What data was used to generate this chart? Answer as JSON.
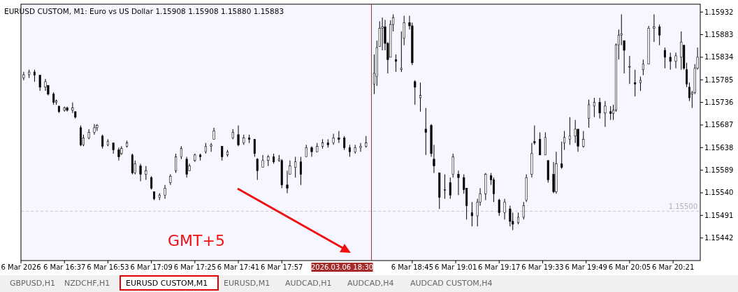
{
  "chart_data": {
    "type": "candlestick",
    "title": "EURUSD CUSTOM, M1:  Euro vs US Dollar  1.15908 1.15908 1.15880 1.15883",
    "x": [
      "2026-03-06T16:22",
      "2026-03-06T16:24",
      "2026-03-06T16:26",
      "2026-03-06T16:28",
      "2026-03-06T16:30",
      "2026-03-06T16:31",
      "2026-03-06T16:33",
      "2026-03-06T16:34",
      "2026-03-06T16:35",
      "2026-03-06T16:37",
      "2026-03-06T16:38",
      "2026-03-06T16:40",
      "2026-03-06T16:41",
      "2026-03-06T16:43",
      "2026-03-06T16:44",
      "2026-03-06T16:46",
      "2026-03-06T16:48",
      "2026-03-06T16:49",
      "2026-03-06T16:51",
      "2026-03-06T16:53",
      "2026-03-06T16:55",
      "2026-03-06T16:57",
      "2026-03-06T16:58",
      "2026-03-06T17:00",
      "2026-03-06T17:02",
      "2026-03-06T17:03",
      "2026-03-06T17:05",
      "2026-03-06T17:07",
      "2026-03-06T17:09",
      "2026-03-06T17:10",
      "2026-03-06T17:12",
      "2026-03-06T17:14",
      "2026-03-06T17:16",
      "2026-03-06T17:18",
      "2026-03-06T17:20",
      "2026-03-06T17:22",
      "2026-03-06T17:23",
      "2026-03-06T17:25",
      "2026-03-06T17:27",
      "2026-03-06T17:29",
      "2026-03-06T17:31",
      "2026-03-06T17:32",
      "2026-03-06T17:35",
      "2026-03-06T17:37",
      "2026-03-06T17:39",
      "2026-03-06T17:41",
      "2026-03-06T17:43",
      "2026-03-06T17:45",
      "2026-03-06T17:47",
      "2026-03-06T17:48",
      "2026-03-06T17:50",
      "2026-03-06T17:52",
      "2026-03-06T17:54",
      "2026-03-06T17:56",
      "2026-03-06T17:57",
      "2026-03-06T17:59",
      "2026-03-06T18:00",
      "2026-03-06T18:02",
      "2026-03-06T18:04",
      "2026-03-06T18:06",
      "2026-03-06T18:08",
      "2026-03-06T18:10",
      "2026-03-06T18:12",
      "2026-03-06T18:14",
      "2026-03-06T18:16",
      "2026-03-06T18:18",
      "2026-03-06T18:20",
      "2026-03-06T18:22",
      "2026-03-06T18:24",
      "2026-03-06T18:26",
      "2026-03-06T18:28",
      "2026-03-06T18:31",
      "2026-03-06T18:32",
      "2026-03-06T18:33",
      "2026-03-06T18:34",
      "2026-03-06T18:35",
      "2026-03-06T18:36",
      "2026-03-06T18:37",
      "2026-03-06T18:38",
      "2026-03-06T18:39",
      "2026-03-06T18:41",
      "2026-03-06T18:42",
      "2026-03-06T18:44",
      "2026-03-06T18:45",
      "2026-03-06T18:46",
      "2026-03-06T18:48",
      "2026-03-06T18:50",
      "2026-03-06T18:52",
      "2026-03-06T18:53",
      "2026-03-06T18:55",
      "2026-03-06T18:57",
      "2026-03-06T18:59",
      "2026-03-06T19:00",
      "2026-03-06T19:02",
      "2026-03-06T19:04",
      "2026-03-06T19:05",
      "2026-03-06T19:07",
      "2026-03-06T19:09",
      "2026-03-06T19:10",
      "2026-03-06T19:12",
      "2026-03-06T19:14",
      "2026-03-06T19:15",
      "2026-03-06T19:17",
      "2026-03-06T19:19",
      "2026-03-06T19:21",
      "2026-03-06T19:22",
      "2026-03-06T19:24",
      "2026-03-06T19:26",
      "2026-03-06T19:27",
      "2026-03-06T19:29",
      "2026-03-06T19:30",
      "2026-03-06T19:32",
      "2026-03-06T19:34",
      "2026-03-06T19:35",
      "2026-03-06T19:37",
      "2026-03-06T19:38",
      "2026-03-06T19:40",
      "2026-03-06T19:41",
      "2026-03-06T19:43",
      "2026-03-06T19:45",
      "2026-03-06T19:46",
      "2026-03-06T19:48",
      "2026-03-06T19:50",
      "2026-03-06T19:52",
      "2026-03-06T19:54",
      "2026-03-06T19:56",
      "2026-03-06T19:58",
      "2026-03-06T19:59",
      "2026-03-06T20:00",
      "2026-03-06T20:01",
      "2026-03-06T20:02",
      "2026-03-06T20:03",
      "2026-03-06T20:05",
      "2026-03-06T20:07",
      "2026-03-06T20:09",
      "2026-03-06T20:10",
      "2026-03-06T20:12",
      "2026-03-06T20:14",
      "2026-03-06T20:16",
      "2026-03-06T20:18",
      "2026-03-06T20:20",
      "2026-03-06T20:22",
      "2026-03-06T20:24",
      "2026-03-06T20:25",
      "2026-03-06T20:26",
      "2026-03-06T20:27",
      "2026-03-06T20:28",
      "2026-03-06T20:29",
      "2026-03-06T20:30"
    ],
    "ohlc": [
      [
        1.15789,
        1.15802,
        1.15784,
        1.15796
      ],
      [
        1.15796,
        1.15807,
        1.15789,
        1.15802
      ],
      [
        1.15802,
        1.15807,
        1.15781,
        1.15795
      ],
      [
        1.15795,
        1.15795,
        1.15761,
        1.15769
      ],
      [
        1.15769,
        1.15787,
        1.15761,
        1.15781
      ],
      [
        1.15773,
        1.15773,
        1.15751,
        1.15754
      ],
      [
        1.15754,
        1.15758,
        1.15731,
        1.15736
      ],
      [
        1.15736,
        1.15742,
        1.15731,
        1.15739
      ],
      [
        1.15728,
        1.15728,
        1.15713,
        1.15716
      ],
      [
        1.15719,
        1.15727,
        1.15716,
        1.15724
      ],
      [
        1.15724,
        1.15727,
        1.15716,
        1.15719
      ],
      [
        1.15719,
        1.15736,
        1.15713,
        1.15724
      ],
      [
        1.15716,
        1.15716,
        1.15701,
        1.15704
      ],
      [
        1.15681,
        1.15686,
        1.15641,
        1.15644
      ],
      [
        1.15644,
        1.15666,
        1.15641,
        1.15659
      ],
      [
        1.15659,
        1.15678,
        1.15656,
        1.15671
      ],
      [
        1.15671,
        1.15689,
        1.15666,
        1.15681
      ],
      [
        1.15681,
        1.15689,
        1.15674,
        1.15686
      ],
      [
        1.15663,
        1.15666,
        1.15636,
        1.15641
      ],
      [
        1.15644,
        1.15656,
        1.15641,
        1.15651
      ],
      [
        1.15648,
        1.15648,
        1.15625,
        1.15633
      ],
      [
        1.15633,
        1.15638,
        1.1561,
        1.15618
      ],
      [
        1.15625,
        1.15641,
        1.15622,
        1.15636
      ],
      [
        1.15641,
        1.15653,
        1.15638,
        1.15648
      ],
      [
        1.15622,
        1.15625,
        1.1558,
        1.15583
      ],
      [
        1.15583,
        1.1561,
        1.1558,
        1.15603
      ],
      [
        1.15598,
        1.15603,
        1.15565,
        1.1558
      ],
      [
        1.1558,
        1.15598,
        1.15568,
        1.15588
      ],
      [
        1.15573,
        1.15576,
        1.15547,
        1.1555
      ],
      [
        1.15542,
        1.15542,
        1.15524,
        1.15527
      ],
      [
        1.1553,
        1.15539,
        1.15524,
        1.15535
      ],
      [
        1.15535,
        1.15557,
        1.15527,
        1.1555
      ],
      [
        1.15562,
        1.1558,
        1.15557,
        1.15576
      ],
      [
        1.15588,
        1.15625,
        1.15583,
        1.15618
      ],
      [
        1.15618,
        1.15641,
        1.15613,
        1.15636
      ],
      [
        1.15613,
        1.15618,
        1.15573,
        1.1558
      ],
      [
        1.15588,
        1.15603,
        1.15588,
        1.15598
      ],
      [
        1.1561,
        1.15625,
        1.15607,
        1.15622
      ],
      [
        1.15622,
        1.15625,
        1.1561,
        1.15618
      ],
      [
        1.15629,
        1.15648,
        1.15625,
        1.15641
      ],
      [
        1.15641,
        1.15648,
        1.15629,
        1.15644
      ],
      [
        1.15656,
        1.15681,
        1.15656,
        1.15674
      ],
      [
        1.15641,
        1.15641,
        1.1561,
        1.15618
      ],
      [
        1.15622,
        1.15633,
        1.15618,
        1.15629
      ],
      [
        1.15659,
        1.15678,
        1.15656,
        1.15671
      ],
      [
        1.15666,
        1.15686,
        1.15641,
        1.15644
      ],
      [
        1.15648,
        1.15666,
        1.15644,
        1.15659
      ],
      [
        1.15659,
        1.15666,
        1.15648,
        1.15656
      ],
      [
        1.15656,
        1.15656,
        1.15618,
        1.15625
      ],
      [
        1.15613,
        1.15615,
        1.15568,
        1.15588
      ],
      [
        1.15595,
        1.15622,
        1.15595,
        1.1561
      ],
      [
        1.1561,
        1.15622,
        1.15598,
        1.15618
      ],
      [
        1.15618,
        1.15625,
        1.15603,
        1.15607
      ],
      [
        1.1561,
        1.15622,
        1.15607,
        1.15613
      ],
      [
        1.1561,
        1.15613,
        1.1555,
        1.15557
      ],
      [
        1.15557,
        1.15588,
        1.15539,
        1.1555
      ],
      [
        1.1558,
        1.1561,
        1.1558,
        1.15598
      ],
      [
        1.15595,
        1.15618,
        1.15573,
        1.15607
      ],
      [
        1.15607,
        1.15618,
        1.15557,
        1.1558
      ],
      [
        1.15618,
        1.15644,
        1.15618,
        1.15638
      ],
      [
        1.15638,
        1.15641,
        1.15618,
        1.15629
      ],
      [
        1.15629,
        1.15648,
        1.15629,
        1.15641
      ],
      [
        1.15641,
        1.15656,
        1.15636,
        1.15648
      ],
      [
        1.15648,
        1.15656,
        1.15638,
        1.15644
      ],
      [
        1.15648,
        1.15668,
        1.15644,
        1.15659
      ],
      [
        1.15659,
        1.15674,
        1.15648,
        1.15656
      ],
      [
        1.15659,
        1.15663,
        1.15633,
        1.15638
      ],
      [
        1.15638,
        1.15644,
        1.15618,
        1.15629
      ],
      [
        1.15629,
        1.15644,
        1.15625,
        1.15638
      ],
      [
        1.15638,
        1.15648,
        1.15629,
        1.15641
      ],
      [
        1.15641,
        1.15663,
        1.15638,
        1.15648
      ],
      [
        1.15776,
        1.1584,
        1.15754,
        1.15799
      ],
      [
        1.15792,
        1.1587,
        1.15772,
        1.15855
      ],
      [
        1.15857,
        1.15912,
        1.15857,
        1.15897
      ],
      [
        1.15897,
        1.1592,
        1.15849,
        1.159
      ],
      [
        1.159,
        1.15915,
        1.15849,
        1.15864
      ],
      [
        1.15864,
        1.15867,
        1.15799,
        1.15829
      ],
      [
        1.15834,
        1.15914,
        1.15834,
        1.15905
      ],
      [
        1.15905,
        1.15927,
        1.1589,
        1.1592
      ],
      [
        1.15829,
        1.1584,
        1.15802,
        1.15825
      ],
      [
        1.15807,
        1.1589,
        1.15802,
        1.1581
      ],
      [
        1.15875,
        1.15924,
        1.1586,
        1.15909
      ],
      [
        1.15909,
        1.15924,
        1.15894,
        1.15902
      ],
      [
        1.15902,
        1.15909,
        1.15817,
        1.15822
      ],
      [
        1.15781,
        1.15784,
        1.15731,
        1.15769
      ],
      [
        1.15746,
        1.15779,
        1.15716,
        1.15751
      ],
      [
        1.15678,
        1.15724,
        1.15622,
        1.15671
      ],
      [
        1.15686,
        1.15689,
        1.15618,
        1.15625
      ],
      [
        1.15613,
        1.15644,
        1.15583,
        1.15598
      ],
      [
        1.15583,
        1.15583,
        1.15505,
        1.1553
      ],
      [
        1.15547,
        1.1558,
        1.15527,
        1.15547
      ],
      [
        1.15562,
        1.15573,
        1.15527,
        1.15535
      ],
      [
        1.1558,
        1.15625,
        1.15573,
        1.15618
      ],
      [
        1.1558,
        1.15588,
        1.15535,
        1.15573
      ],
      [
        1.15573,
        1.1558,
        1.15538,
        1.15547
      ],
      [
        1.1555,
        1.1555,
        1.15482,
        1.15512
      ],
      [
        1.15497,
        1.1552,
        1.15467,
        1.1549
      ],
      [
        1.1549,
        1.15527,
        1.15467,
        1.1552
      ],
      [
        1.1552,
        1.1555,
        1.15512,
        1.15538
      ],
      [
        1.15538,
        1.15583,
        1.15524,
        1.1558
      ],
      [
        1.15577,
        1.15583,
        1.15557,
        1.15568
      ],
      [
        1.15568,
        1.15573,
        1.1552,
        1.15538
      ],
      [
        1.15524,
        1.15527,
        1.1549,
        1.15497
      ],
      [
        1.15497,
        1.15527,
        1.15482,
        1.1552
      ],
      [
        1.15505,
        1.15512,
        1.15467,
        1.15478
      ],
      [
        1.15478,
        1.15497,
        1.15459,
        1.15472
      ],
      [
        1.15475,
        1.15497,
        1.15472,
        1.15487
      ],
      [
        1.15487,
        1.1552,
        1.15482,
        1.15512
      ],
      [
        1.15524,
        1.1558,
        1.1552,
        1.15573
      ],
      [
        1.1558,
        1.15648,
        1.15573,
        1.15625
      ],
      [
        1.15651,
        1.15686,
        1.15644,
        1.15648
      ],
      [
        1.15656,
        1.15671,
        1.15622,
        1.15622
      ],
      [
        1.15622,
        1.15671,
        1.15622,
        1.1566
      ],
      [
        1.1561,
        1.1561,
        1.15562,
        1.15568
      ],
      [
        1.1558,
        1.15607,
        1.15539,
        1.15542
      ],
      [
        1.15542,
        1.15629,
        1.15538,
        1.15603
      ],
      [
        1.15603,
        1.15651,
        1.15592,
        1.15595
      ],
      [
        1.15648,
        1.15674,
        1.15633,
        1.1566
      ],
      [
        1.15656,
        1.15704,
        1.15644,
        1.15663
      ],
      [
        1.15663,
        1.15698,
        1.15648,
        1.15678
      ],
      [
        1.15678,
        1.15678,
        1.15629,
        1.15641
      ],
      [
        1.15641,
        1.15674,
        1.15638,
        1.15656
      ],
      [
        1.15701,
        1.15742,
        1.15681,
        1.15731
      ],
      [
        1.15728,
        1.15746,
        1.15704,
        1.15736
      ],
      [
        1.15736,
        1.15746,
        1.15701,
        1.15713
      ],
      [
        1.15713,
        1.15739,
        1.15683,
        1.15728
      ],
      [
        1.15716,
        1.15728,
        1.15698,
        1.15712
      ],
      [
        1.15712,
        1.15731,
        1.15698,
        1.15719
      ],
      [
        1.15719,
        1.15864,
        1.15716,
        1.15861
      ],
      [
        1.15861,
        1.15894,
        1.15829,
        1.15882
      ],
      [
        1.15882,
        1.15927,
        1.1586,
        1.15885
      ],
      [
        1.1587,
        1.1587,
        1.15799,
        1.15849
      ],
      [
        1.15814,
        1.15837,
        1.15776,
        1.15814
      ],
      [
        1.15779,
        1.15807,
        1.15749,
        1.15776
      ],
      [
        1.15779,
        1.15792,
        1.15761,
        1.15784
      ],
      [
        1.15807,
        1.15829,
        1.15795,
        1.15819
      ],
      [
        1.15819,
        1.15902,
        1.15819,
        1.15897
      ],
      [
        1.15897,
        1.15927,
        1.15867,
        1.159
      ],
      [
        1.159,
        1.15905,
        1.1586,
        1.15882
      ],
      [
        1.15849,
        1.15855,
        1.1581,
        1.15834
      ],
      [
        1.15834,
        1.15844,
        1.15807,
        1.15825
      ],
      [
        1.15825,
        1.15844,
        1.1581,
        1.15837
      ],
      [
        1.15834,
        1.1589,
        1.15807,
        1.15867
      ],
      [
        1.1586,
        1.1586,
        1.15807,
        1.1581
      ],
      [
        1.15807,
        1.15822,
        1.15769,
        1.15776
      ],
      [
        1.15769,
        1.15779,
        1.15739,
        1.15746
      ],
      [
        1.15754,
        1.15761,
        1.15724,
        1.15757
      ],
      [
        1.15757,
        1.15819,
        1.15754,
        1.1581
      ],
      [
        1.1581,
        1.15855,
        1.15807,
        1.15834
      ]
    ],
    "xlim": [
      "2026-03-06T16:21",
      "2026-03-06T20:31"
    ],
    "xticks": [
      {
        "value": "2026-03-06T16:21",
        "label": "6 Mar 2026"
      },
      {
        "value": "2026-03-06T16:37",
        "label": "6 Mar 16:37"
      },
      {
        "value": "2026-03-06T16:53",
        "label": "6 Mar 16:53"
      },
      {
        "value": "2026-03-06T17:09",
        "label": "6 Mar 17:09"
      },
      {
        "value": "2026-03-06T17:25",
        "label": "6 Mar 17:25"
      },
      {
        "value": "2026-03-06T17:41",
        "label": "6 Mar 17:41"
      },
      {
        "value": "2026-03-06T17:57",
        "label": "6 Mar 17:57"
      },
      {
        "value": "2026-03-06T18:45",
        "label": "6 Mar 18:45"
      },
      {
        "value": "2026-03-06T19:01",
        "label": "6 Mar 19:01"
      },
      {
        "value": "2026-03-06T19:17",
        "label": "6 Mar 19:17"
      },
      {
        "value": "2026-03-06T19:33",
        "label": "6 Mar 19:33"
      },
      {
        "value": "2026-03-06T19:49",
        "label": "6 Mar 19:49"
      },
      {
        "value": "2026-03-06T20:05",
        "label": "6 Mar 20:05"
      },
      {
        "value": "2026-03-06T20:21",
        "label": "6 Mar 20:21"
      }
    ],
    "ylim": [
      1.15393,
      1.15949
    ],
    "yticks": [
      1.15932,
      1.15883,
      1.15834,
      1.15785,
      1.15736,
      1.15687,
      1.15638,
      1.15589,
      {
        "value": 1.1554,
        "label": "1.15540"
      },
      1.15491,
      1.15442
    ],
    "ref_lines": [
      {
        "axis": "x",
        "value": "2026-03-06T18:30",
        "label": "2026.03.06 18:30",
        "color": "#a52a2a",
        "line_style": "solid"
      },
      {
        "axis": "y",
        "value": 1.155,
        "label": "1.15500",
        "color": "#c8c8d0",
        "line_style": "dashed"
      }
    ],
    "annotations": [
      "GMT+5",
      "GBPUSD,H1",
      "NZDCHF,H1",
      "EURUSD CUSTOM,M1",
      "EURUSD,M1",
      "AUDCAD,H1",
      "AUDCAD,H4",
      "AUDCAD CUSTOM,H4"
    ]
  }
}
